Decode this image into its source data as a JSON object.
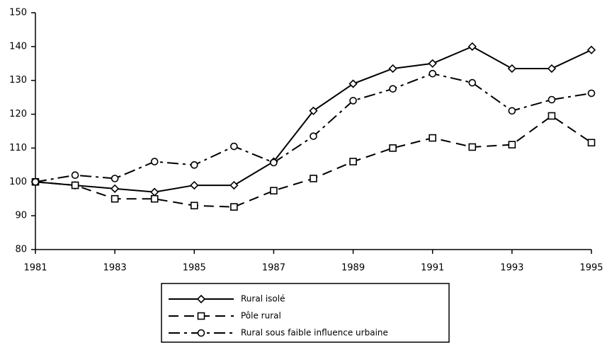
{
  "chart_data": {
    "type": "line",
    "x": [
      1981,
      1982,
      1983,
      1984,
      1985,
      1986,
      1987,
      1988,
      1989,
      1990,
      1991,
      1992,
      1993,
      1994,
      1995
    ],
    "series": [
      {
        "name": "Rural isolé",
        "color": "#000000",
        "dash": "solid",
        "marker": "diamond",
        "values": [
          100,
          99,
          98,
          97,
          99,
          99,
          106,
          121,
          129,
          133.5,
          135,
          140,
          133.5,
          133.5,
          139
        ]
      },
      {
        "name": "Pôle rural",
        "color": "#000000",
        "dash": "dashed",
        "marker": "square",
        "values": [
          100,
          99,
          95,
          95,
          93,
          92.6,
          97.4,
          101,
          106,
          110,
          113,
          110.3,
          111,
          119.5,
          111.6
        ]
      },
      {
        "name": "Rural sous faible influence urbaine",
        "color": "#000000",
        "dash": "dashdot",
        "marker": "circle",
        "values": [
          100,
          102,
          101,
          106,
          105,
          110.5,
          105.7,
          113.5,
          124,
          127.5,
          132,
          129.3,
          121,
          124.3,
          126.2
        ]
      }
    ],
    "xlim": [
      1981,
      1995
    ],
    "xticks": [
      1981,
      1983,
      1985,
      1987,
      1989,
      1991,
      1993,
      1995
    ],
    "ylim": [
      80,
      150
    ],
    "yticks": [
      80,
      90,
      100,
      110,
      120,
      130,
      140,
      150
    ],
    "grid": false,
    "legend": "bottom"
  }
}
